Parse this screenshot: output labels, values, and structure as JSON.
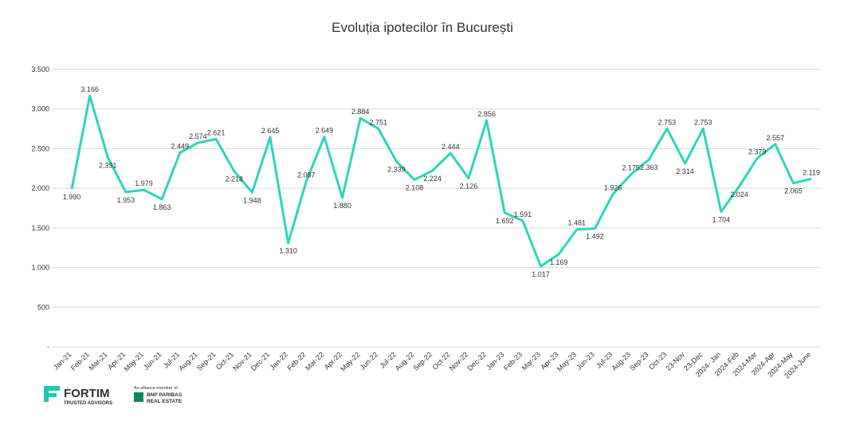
{
  "chart_data": {
    "type": "line",
    "title": "Evoluția ipotecilor în București",
    "categories": [
      "Jan-21",
      "Feb-21",
      "Mar-21",
      "Apr-21",
      "May-21",
      "Jun-21",
      "Jul-21",
      "Aug-21",
      "Sep-21",
      "Oct-21",
      "Nov-21",
      "Dec-21",
      "Jan-22",
      "Feb-22",
      "Mar-22",
      "Apr-22",
      "May-22",
      "Jun-22",
      "Jul-22",
      "Aug-22",
      "Sep-22",
      "Oct-22",
      "Nov-22",
      "Dec-22",
      "Jan-23",
      "Feb-23",
      "Mar-23",
      "Apr-23",
      "May-23",
      "Jun-23",
      "Jul-23",
      "Aug-23",
      "Sep-23",
      "Oct-23",
      "23-Nov",
      "23-Dec",
      "2024- Jan",
      "2024-Feb",
      "2024-Mar",
      "2024-Apr",
      "2024-May",
      "2024-June"
    ],
    "values": [
      1990,
      3166,
      2391,
      1953,
      1979,
      1863,
      2449,
      2574,
      2621,
      2218,
      1948,
      2645,
      1310,
      2087,
      2649,
      1880,
      2884,
      2751,
      2339,
      2108,
      2224,
      2444,
      2126,
      2856,
      1692,
      1591,
      1017,
      1169,
      1481,
      1492,
      1926,
      2175,
      2363,
      2753,
      2314,
      2753,
      1704,
      2024,
      2379,
      2557,
      2065,
      2119
    ],
    "value_labels": [
      "1.990",
      "3.166",
      "2.391",
      "1.953",
      "1.979",
      "1.863",
      "2.449",
      "2.574",
      "2.621",
      "2.218",
      "1.948",
      "2.645",
      "1.310",
      "2.087",
      "2.649",
      "1.880",
      "2.884",
      "2.751",
      "2.339",
      "2.108",
      "2.224",
      "2.444",
      "2.126",
      "2.856",
      "1.692",
      "1.591",
      "1.017",
      "1.169",
      "1.481",
      "1.492",
      "1.926",
      "2.175",
      "2.363",
      "2.753",
      "2.314",
      "2.753",
      "1.704",
      "2.024",
      "2.379",
      "2.557",
      "2.065",
      "2.119"
    ],
    "color": "#2dd4bf",
    "ylim": [
      0,
      3500
    ],
    "yticks": [
      {
        "value": 0,
        "label": "-"
      },
      500,
      {
        "value": 1000,
        "label": "1.000"
      },
      {
        "value": 1500,
        "label": "1.500"
      },
      {
        "value": 2000,
        "label": "2.000"
      },
      {
        "value": 2500,
        "label": "2.500"
      },
      {
        "value": 3000,
        "label": "3.000"
      },
      {
        "value": 3500,
        "label": "3.500"
      }
    ],
    "grid": true
  },
  "logo": {
    "name": "FORTIM",
    "tagline": "TRUSTED ADVISORS",
    "alliance": "An alliance member of",
    "partner1": "BNP PARIBAS",
    "partner2": "REAL ESTATE"
  }
}
